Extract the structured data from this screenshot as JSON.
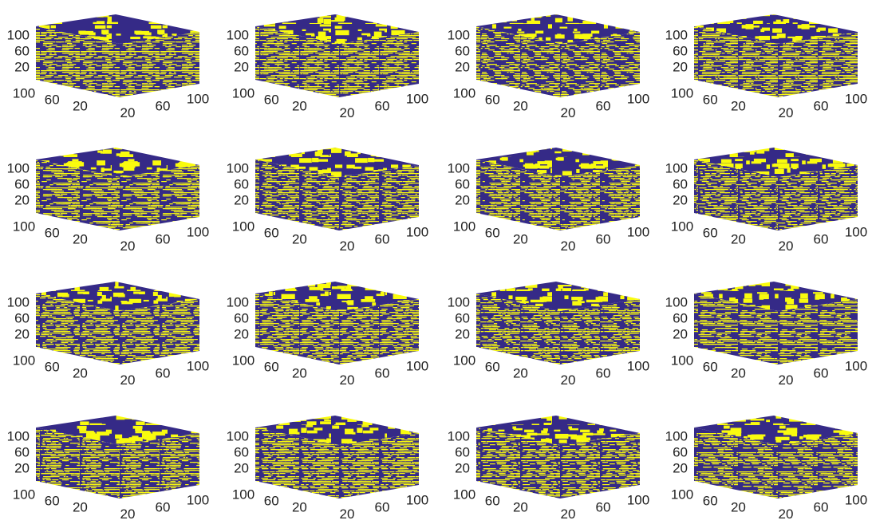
{
  "chart_data": [
    {
      "type": "voxel",
      "colors": [
        "#352a87",
        "#f9fb0e"
      ],
      "xlim": [
        0,
        100
      ],
      "ylim": [
        0,
        100
      ],
      "zlim": [
        0,
        100
      ],
      "xticks": [
        20,
        60,
        100
      ],
      "yticks": [
        20,
        60,
        100
      ],
      "zticks": [
        20,
        60,
        100
      ]
    },
    {
      "type": "voxel",
      "colors": [
        "#352a87",
        "#f9fb0e"
      ],
      "xlim": [
        0,
        100
      ],
      "ylim": [
        0,
        100
      ],
      "zlim": [
        0,
        100
      ],
      "xticks": [
        20,
        60,
        100
      ],
      "yticks": [
        20,
        60,
        100
      ],
      "zticks": [
        20,
        60,
        100
      ]
    },
    {
      "type": "voxel",
      "colors": [
        "#352a87",
        "#f9fb0e"
      ],
      "xlim": [
        0,
        100
      ],
      "ylim": [
        0,
        100
      ],
      "zlim": [
        0,
        100
      ],
      "xticks": [
        20,
        60,
        100
      ],
      "yticks": [
        20,
        60,
        100
      ],
      "zticks": [
        20,
        60,
        100
      ]
    },
    {
      "type": "voxel",
      "colors": [
        "#352a87",
        "#f9fb0e"
      ],
      "xlim": [
        0,
        100
      ],
      "ylim": [
        0,
        100
      ],
      "zlim": [
        0,
        100
      ],
      "xticks": [
        20,
        60,
        100
      ],
      "yticks": [
        20,
        60,
        100
      ],
      "zticks": [
        20,
        60,
        100
      ]
    },
    {
      "type": "voxel",
      "colors": [
        "#352a87",
        "#f9fb0e"
      ],
      "xlim": [
        0,
        100
      ],
      "ylim": [
        0,
        100
      ],
      "zlim": [
        0,
        100
      ],
      "xticks": [
        20,
        60,
        100
      ],
      "yticks": [
        20,
        60,
        100
      ],
      "zticks": [
        20,
        60,
        100
      ]
    },
    {
      "type": "voxel",
      "colors": [
        "#352a87",
        "#f9fb0e"
      ],
      "xlim": [
        0,
        100
      ],
      "ylim": [
        0,
        100
      ],
      "zlim": [
        0,
        100
      ],
      "xticks": [
        20,
        60,
        100
      ],
      "yticks": [
        20,
        60,
        100
      ],
      "zticks": [
        20,
        60,
        100
      ]
    },
    {
      "type": "voxel",
      "colors": [
        "#352a87",
        "#f9fb0e"
      ],
      "xlim": [
        0,
        100
      ],
      "ylim": [
        0,
        100
      ],
      "zlim": [
        0,
        100
      ],
      "xticks": [
        20,
        60,
        100
      ],
      "yticks": [
        20,
        60,
        100
      ],
      "zticks": [
        20,
        60,
        100
      ]
    },
    {
      "type": "voxel",
      "colors": [
        "#352a87",
        "#f9fb0e"
      ],
      "xlim": [
        0,
        100
      ],
      "ylim": [
        0,
        100
      ],
      "zlim": [
        0,
        100
      ],
      "xticks": [
        20,
        60,
        100
      ],
      "yticks": [
        20,
        60,
        100
      ],
      "zticks": [
        20,
        60,
        100
      ]
    },
    {
      "type": "voxel",
      "colors": [
        "#352a87",
        "#f9fb0e"
      ],
      "xlim": [
        0,
        100
      ],
      "ylim": [
        0,
        100
      ],
      "zlim": [
        0,
        100
      ],
      "xticks": [
        20,
        60,
        100
      ],
      "yticks": [
        20,
        60,
        100
      ],
      "zticks": [
        20,
        60,
        100
      ]
    },
    {
      "type": "voxel",
      "colors": [
        "#352a87",
        "#f9fb0e"
      ],
      "xlim": [
        0,
        100
      ],
      "ylim": [
        0,
        100
      ],
      "zlim": [
        0,
        100
      ],
      "xticks": [
        20,
        60,
        100
      ],
      "yticks": [
        20,
        60,
        100
      ],
      "zticks": [
        20,
        60,
        100
      ]
    },
    {
      "type": "voxel",
      "colors": [
        "#352a87",
        "#f9fb0e"
      ],
      "xlim": [
        0,
        100
      ],
      "ylim": [
        0,
        100
      ],
      "zlim": [
        0,
        100
      ],
      "xticks": [
        20,
        60,
        100
      ],
      "yticks": [
        20,
        60,
        100
      ],
      "zticks": [
        20,
        60,
        100
      ]
    },
    {
      "type": "voxel",
      "colors": [
        "#352a87",
        "#f9fb0e"
      ],
      "xlim": [
        0,
        100
      ],
      "ylim": [
        0,
        100
      ],
      "zlim": [
        0,
        100
      ],
      "xticks": [
        20,
        60,
        100
      ],
      "yticks": [
        20,
        60,
        100
      ],
      "zticks": [
        20,
        60,
        100
      ]
    },
    {
      "type": "voxel",
      "colors": [
        "#352a87",
        "#f9fb0e"
      ],
      "xlim": [
        0,
        100
      ],
      "ylim": [
        0,
        100
      ],
      "zlim": [
        0,
        100
      ],
      "xticks": [
        20,
        60,
        100
      ],
      "yticks": [
        20,
        60,
        100
      ],
      "zticks": [
        20,
        60,
        100
      ]
    },
    {
      "type": "voxel",
      "colors": [
        "#352a87",
        "#f9fb0e"
      ],
      "xlim": [
        0,
        100
      ],
      "ylim": [
        0,
        100
      ],
      "zlim": [
        0,
        100
      ],
      "xticks": [
        20,
        60,
        100
      ],
      "yticks": [
        20,
        60,
        100
      ],
      "zticks": [
        20,
        60,
        100
      ]
    },
    {
      "type": "voxel",
      "colors": [
        "#352a87",
        "#f9fb0e"
      ],
      "xlim": [
        0,
        100
      ],
      "ylim": [
        0,
        100
      ],
      "zlim": [
        0,
        100
      ],
      "xticks": [
        20,
        60,
        100
      ],
      "yticks": [
        20,
        60,
        100
      ],
      "zticks": [
        20,
        60,
        100
      ]
    },
    {
      "type": "voxel",
      "colors": [
        "#352a87",
        "#f9fb0e"
      ],
      "xlim": [
        0,
        100
      ],
      "ylim": [
        0,
        100
      ],
      "zlim": [
        0,
        100
      ],
      "xticks": [
        20,
        60,
        100
      ],
      "yticks": [
        20,
        60,
        100
      ],
      "zticks": [
        20,
        60,
        100
      ]
    }
  ]
}
